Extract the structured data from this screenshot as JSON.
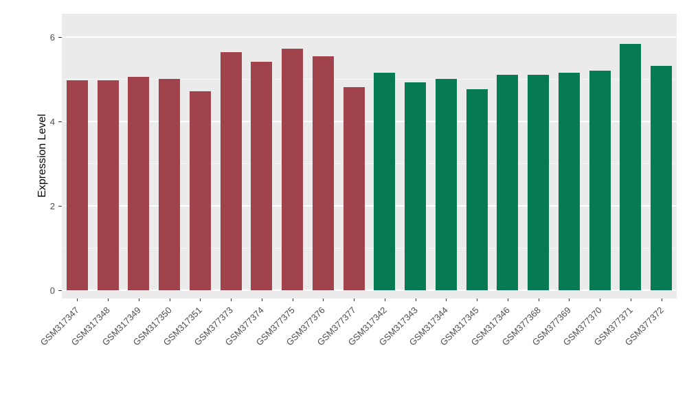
{
  "chart_data": {
    "type": "bar",
    "title": "",
    "xlabel": "",
    "ylabel": "Expression Level",
    "ylim": [
      0,
      6.2
    ],
    "yticks": [
      0,
      2,
      4,
      6
    ],
    "yminorticks": [
      1,
      3,
      5
    ],
    "grid": true,
    "legend_position": "none",
    "categories": [
      "GSM317347",
      "GSM317348",
      "GSM317349",
      "GSM317350",
      "GSM317351",
      "GSM377373",
      "GSM377374",
      "GSM377375",
      "GSM377376",
      "GSM377377",
      "GSM317342",
      "GSM317343",
      "GSM317344",
      "GSM317345",
      "GSM317346",
      "GSM377368",
      "GSM377369",
      "GSM377370",
      "GSM377371",
      "GSM377372"
    ],
    "values": [
      4.98,
      4.97,
      5.05,
      5.01,
      4.72,
      5.65,
      5.41,
      5.73,
      5.55,
      4.82,
      5.16,
      4.92,
      5.0,
      4.76,
      5.1,
      5.1,
      5.16,
      5.21,
      5.83,
      5.32
    ],
    "bar_groups": [
      0,
      0,
      0,
      0,
      0,
      0,
      0,
      0,
      0,
      0,
      1,
      1,
      1,
      1,
      1,
      1,
      1,
      1,
      1,
      1
    ],
    "group_colors": [
      "#A0434C",
      "#067A52"
    ],
    "panel_background": "#EBEBEB",
    "grid_major_color": "#FFFFFF",
    "grid_minor_color": "rgba(255,255,255,0.55)",
    "axis_text_color": "#4D4D4D"
  }
}
